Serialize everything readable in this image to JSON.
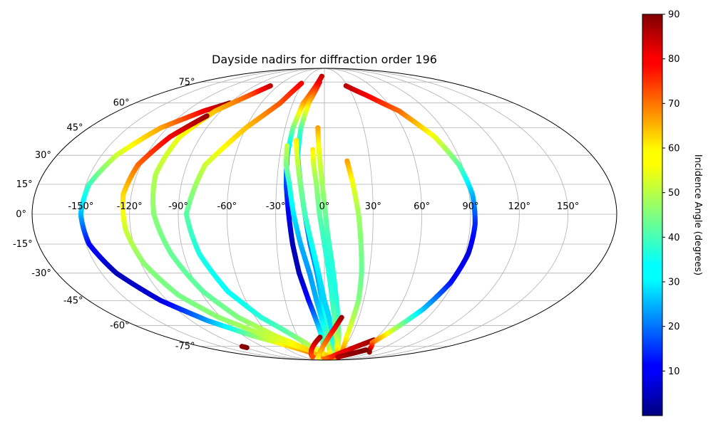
{
  "chart_data": {
    "type": "scatter",
    "projection": "mollweide",
    "title": "Dayside nadirs for diffraction order 196",
    "lon_ticks": [
      -150,
      -120,
      -90,
      -60,
      -30,
      0,
      30,
      60,
      90,
      120,
      150
    ],
    "lon_tick_labels": [
      "-150°",
      "-120°",
      "-90°",
      "-60°",
      "-30°",
      "0°",
      "30°",
      "60°",
      "90°",
      "120°",
      "150°"
    ],
    "lat_ticks": [
      75,
      60,
      45,
      30,
      15,
      0,
      -15,
      -30,
      -45,
      -60,
      -75
    ],
    "lat_tick_labels": [
      "75°",
      "60°",
      "45°",
      "30°",
      "15°",
      "0°",
      "-15°",
      "-30°",
      "-45°",
      "-60°",
      "-75°"
    ],
    "grid": true,
    "colormap": "jet",
    "colorbar": {
      "label": "Incidence Angle (degrees)",
      "range": [
        0,
        90
      ],
      "ticks": [
        10,
        20,
        30,
        40,
        50,
        60,
        70,
        80,
        90
      ],
      "tick_labels": [
        "10",
        "20",
        "30",
        "40",
        "50",
        "60",
        "70",
        "80",
        "90"
      ]
    },
    "series": [
      {
        "points": [
          [
            -90,
            60,
            90
          ],
          [
            -105,
            55,
            80
          ],
          [
            -125,
            45,
            65
          ],
          [
            -140,
            30,
            52
          ],
          [
            -148,
            15,
            40
          ],
          [
            -150,
            0,
            28
          ],
          [
            -148,
            -15,
            12
          ],
          [
            -140,
            -30,
            5
          ],
          [
            -125,
            -45,
            8
          ],
          [
            -105,
            -57,
            25
          ],
          [
            -80,
            -67,
            45
          ],
          [
            -50,
            -75,
            60
          ],
          [
            -20,
            -82,
            70
          ],
          [
            0,
            -85,
            78
          ]
        ]
      },
      {
        "points": [
          [
            -70,
            72,
            85
          ],
          [
            -80,
            65,
            72
          ],
          [
            -95,
            55,
            62
          ],
          [
            -105,
            40,
            55
          ],
          [
            -108,
            20,
            50
          ],
          [
            -105,
            0,
            46
          ],
          [
            -98,
            -20,
            43
          ],
          [
            -88,
            -40,
            42
          ],
          [
            -75,
            -55,
            45
          ],
          [
            -55,
            -67,
            52
          ],
          [
            -30,
            -77,
            60
          ],
          [
            -10,
            -83,
            68
          ],
          [
            5,
            -86,
            74
          ]
        ]
      },
      {
        "points": [
          [
            -98,
            52,
            88
          ],
          [
            -112,
            40,
            80
          ],
          [
            -122,
            25,
            70
          ],
          [
            -125,
            10,
            60
          ],
          [
            -123,
            -8,
            52
          ],
          [
            -118,
            -25,
            46
          ],
          [
            -108,
            -42,
            44
          ],
          [
            -92,
            -55,
            46
          ],
          [
            -68,
            -66,
            50
          ],
          [
            -40,
            -75,
            57
          ],
          [
            -15,
            -81,
            63
          ],
          [
            10,
            -85,
            70
          ],
          [
            30,
            -87,
            76
          ]
        ]
      },
      {
        "points": [
          [
            -32,
            74,
            80
          ],
          [
            -42,
            60,
            72
          ],
          [
            -60,
            45,
            62
          ],
          [
            -78,
            25,
            52
          ],
          [
            -85,
            0,
            42
          ],
          [
            -80,
            -20,
            36
          ],
          [
            -70,
            -40,
            34
          ],
          [
            -55,
            -55,
            37
          ],
          [
            -38,
            -65,
            42
          ],
          [
            -20,
            -75,
            50
          ],
          [
            0,
            -82,
            58
          ],
          [
            15,
            -85,
            64
          ],
          [
            30,
            -86,
            68
          ]
        ]
      },
      {
        "points": [
          [
            -5,
            80,
            85
          ],
          [
            -20,
            60,
            65
          ],
          [
            -24,
            45,
            45
          ],
          [
            -25,
            30,
            28
          ],
          [
            -24,
            15,
            18
          ],
          [
            -22,
            0,
            10
          ],
          [
            -20,
            -15,
            5
          ],
          [
            -17,
            -30,
            5
          ],
          [
            -12,
            -45,
            12
          ],
          [
            -8,
            -55,
            22
          ],
          [
            -4,
            -65,
            32
          ],
          [
            -2,
            -73,
            42
          ]
        ]
      },
      {
        "points": [
          [
            -7,
            75,
            82
          ],
          [
            -15,
            60,
            62
          ],
          [
            -18,
            45,
            42
          ],
          [
            -18,
            30,
            30
          ],
          [
            -15,
            15,
            25
          ],
          [
            -12,
            0,
            22
          ],
          [
            -9,
            -15,
            22
          ],
          [
            -5,
            -30,
            25
          ],
          [
            -2,
            -45,
            30
          ],
          [
            1,
            -55,
            36
          ],
          [
            4,
            -65,
            42
          ],
          [
            8,
            -75,
            52
          ],
          [
            15,
            -83,
            62
          ]
        ]
      },
      {
        "points": [
          [
            -20,
            38,
            58
          ],
          [
            -18,
            28,
            52
          ],
          [
            -15,
            15,
            45
          ],
          [
            -12,
            0,
            40
          ],
          [
            -8,
            -15,
            35
          ],
          [
            -4,
            -30,
            32
          ],
          [
            0,
            -45,
            30
          ],
          [
            4,
            -55,
            30
          ],
          [
            8,
            -65,
            32
          ],
          [
            12,
            -75,
            38
          ],
          [
            20,
            -82,
            48
          ]
        ]
      },
      {
        "points": [
          [
            -26,
            35,
            52
          ],
          [
            -25,
            25,
            45
          ],
          [
            -22,
            15,
            38
          ],
          [
            -19,
            0,
            32
          ],
          [
            -15,
            -15,
            27
          ],
          [
            -10,
            -30,
            25
          ],
          [
            -6,
            -45,
            27
          ],
          [
            -2,
            -57,
            32
          ],
          [
            2,
            -67,
            40
          ],
          [
            8,
            -78,
            52
          ],
          [
            15,
            -85,
            62
          ]
        ]
      },
      {
        "points": [
          [
            -5,
            45,
            65
          ],
          [
            -4,
            35,
            56
          ],
          [
            -2,
            20,
            50
          ],
          [
            0,
            5,
            45
          ],
          [
            2,
            -10,
            40
          ],
          [
            5,
            -25,
            37
          ],
          [
            8,
            -40,
            36
          ],
          [
            11,
            -52,
            38
          ],
          [
            14,
            -62,
            42
          ],
          [
            18,
            -72,
            50
          ],
          [
            24,
            -80,
            58
          ],
          [
            32,
            -86,
            66
          ]
        ]
      },
      {
        "points": [
          [
            -8,
            33,
            58
          ],
          [
            -7,
            25,
            52
          ],
          [
            -5,
            15,
            47
          ],
          [
            -3,
            0,
            42
          ],
          [
            0,
            -15,
            38
          ],
          [
            3,
            -30,
            36
          ],
          [
            6,
            -45,
            38
          ],
          [
            9,
            -57,
            42
          ],
          [
            13,
            -67,
            48
          ],
          [
            18,
            -75,
            55
          ],
          [
            26,
            -82,
            62
          ]
        ]
      },
      {
        "points": [
          [
            15,
            27,
            65
          ],
          [
            18,
            15,
            55
          ],
          [
            21,
            0,
            48
          ],
          [
            23,
            -15,
            45
          ],
          [
            25,
            -30,
            43
          ],
          [
            26,
            -45,
            45
          ],
          [
            25,
            -57,
            50
          ],
          [
            25,
            -67,
            55
          ],
          [
            28,
            -75,
            62
          ],
          [
            35,
            -82,
            70
          ],
          [
            48,
            -86,
            78
          ]
        ]
      },
      {
        "points": [
          [
            15,
            -55,
            88
          ],
          [
            10,
            -62,
            80
          ],
          [
            3,
            -70,
            72
          ],
          [
            -5,
            -78,
            65
          ],
          [
            -15,
            -84,
            60
          ],
          [
            -25,
            -87,
            58
          ]
        ]
      },
      {
        "points": [
          [
            -5,
            -68,
            88
          ],
          [
            -15,
            -74,
            82
          ],
          [
            -25,
            -80,
            76
          ],
          [
            -35,
            -85,
            72
          ]
        ]
      },
      {
        "points": [
          [
            60,
            -70,
            88
          ],
          [
            40,
            -78,
            82
          ],
          [
            20,
            -85,
            76
          ],
          [
            0,
            -88,
            70
          ]
        ]
      },
      {
        "points": [
          [
            28,
            72,
            85
          ],
          [
            45,
            65,
            80
          ],
          [
            65,
            55,
            70
          ],
          [
            80,
            40,
            55
          ],
          [
            88,
            25,
            42
          ],
          [
            92,
            10,
            28
          ],
          [
            93,
            -5,
            15
          ],
          [
            92,
            -20,
            8
          ],
          [
            88,
            -35,
            12
          ],
          [
            80,
            -50,
            28
          ],
          [
            70,
            -62,
            48
          ],
          [
            62,
            -72,
            68
          ],
          [
            75,
            -78,
            82
          ],
          [
            85,
            -80,
            88
          ]
        ]
      },
      {
        "points": [
          [
            40,
            -85,
            85
          ],
          [
            55,
            -82,
            88
          ],
          [
            70,
            -78,
            90
          ]
        ]
      },
      {
        "points": [
          [
            -120,
            -75,
            88
          ],
          [
            -118,
            -76,
            90
          ]
        ]
      }
    ]
  }
}
